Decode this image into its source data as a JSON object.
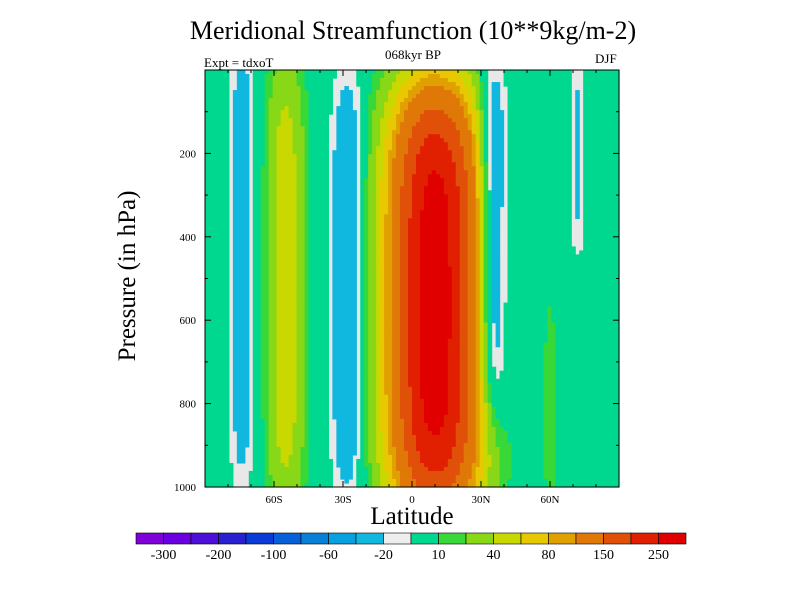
{
  "chart_data": {
    "type": "heatmap",
    "title": "Meridional Streamfunction (10**9kg/m-2)",
    "subtitle": "068kyr BP",
    "left_label": "Expt = tdxoT",
    "right_label": "DJF",
    "xlabel": "Latitude",
    "ylabel": "Pressure (in hPa)",
    "xlim": [
      -90,
      90
    ],
    "ylim": [
      0,
      1000
    ],
    "y_reversed": true,
    "x_ticks": [
      -60,
      -30,
      0,
      30,
      60
    ],
    "x_tick_labels": [
      "60S",
      "30S",
      "0",
      "30N",
      "60N"
    ],
    "y_ticks": [
      200,
      400,
      600,
      800,
      1000
    ],
    "y_tick_labels": [
      "200",
      "400",
      "600",
      "800",
      "1000"
    ],
    "background_color": "#e8e8e8",
    "colorbar": {
      "colors": [
        "#8000d8",
        "#6a00e0",
        "#4e10d8",
        "#2a20d0",
        "#0a3ad8",
        "#0860d8",
        "#0880d8",
        "#08a0e0",
        "#10b8e0",
        "#eeeeee",
        "#00d890",
        "#38d838",
        "#88d818",
        "#c8d800",
        "#e8c800",
        "#e0a000",
        "#e07808",
        "#e05008",
        "#e02000",
        "#e00000"
      ],
      "labels": [
        "-300",
        "-200",
        "-100",
        "-60",
        "-20",
        "10",
        "40",
        "80",
        "150",
        "250"
      ]
    },
    "field_centers": [
      {
        "lat": 10,
        "p": 560,
        "value": 280,
        "lat_halfwidth": 21,
        "p_halfwidth": 520
      },
      {
        "lat": -55,
        "p": 520,
        "value": 55,
        "lat_halfwidth": 9,
        "p_halfwidth": 560
      },
      {
        "lat": -74,
        "p": 460,
        "value": -35,
        "lat_halfwidth": 6,
        "p_halfwidth": 560
      },
      {
        "lat": -28,
        "p": 520,
        "value": -45,
        "lat_halfwidth": 8,
        "p_halfwidth": 520
      },
      {
        "lat": 35,
        "p": 420,
        "value": -70,
        "lat_halfwidth": 7,
        "p_halfwidth": 430
      },
      {
        "lat": 60,
        "p": 820,
        "value": 18,
        "lat_halfwidth": 3,
        "p_halfwidth": 280
      },
      {
        "lat": 72,
        "p": 200,
        "value": -22,
        "lat_halfwidth": 4,
        "p_halfwidth": 260
      }
    ]
  }
}
